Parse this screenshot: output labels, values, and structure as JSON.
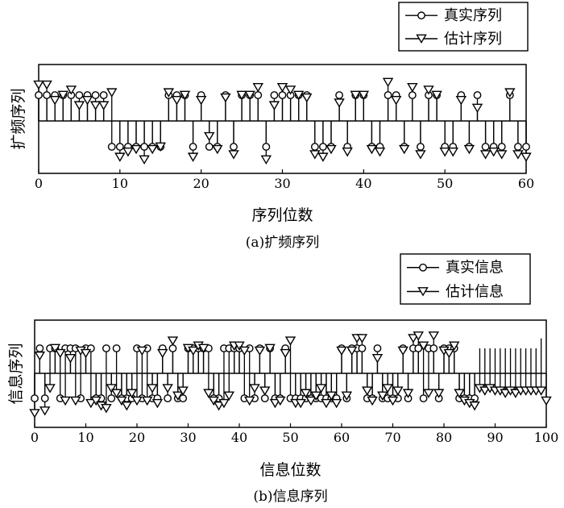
{
  "chart_data": [
    {
      "type": "stem",
      "caption": "(a)扩频序列",
      "xlabel": "序列位数",
      "ylabel": "扩频序列",
      "xlim": [
        0,
        60
      ],
      "ylim": [
        -1.5,
        1.5
      ],
      "xticks": [
        "0",
        "10",
        "20",
        "30",
        "40",
        "50",
        "60"
      ],
      "legend_position": "top-right",
      "series": [
        {
          "name": "真实序列",
          "marker": "circle",
          "x": [
            0,
            1,
            2,
            3,
            4,
            5,
            6,
            7,
            8,
            9,
            10,
            11,
            12,
            13,
            14,
            15,
            16,
            17,
            18,
            19,
            20,
            21,
            22,
            23,
            24,
            25,
            26,
            27,
            28,
            29,
            30,
            31,
            32,
            33,
            34,
            35,
            36,
            37,
            38,
            39,
            40,
            41,
            42,
            43,
            44,
            45,
            46,
            47,
            48,
            49,
            50,
            51,
            52,
            53,
            54,
            55,
            56,
            57,
            58,
            59,
            60
          ],
          "values": [
            1,
            1,
            1,
            1,
            1,
            1,
            1,
            1,
            1,
            -1,
            -1,
            -1,
            -1,
            -1,
            -1,
            -1,
            1,
            1,
            1,
            -1,
            1,
            -1,
            -1,
            1,
            -1,
            1,
            1,
            1,
            -1,
            1,
            1,
            1,
            1,
            1,
            -1,
            -1,
            -1,
            1,
            -1,
            1,
            1,
            -1,
            -1,
            1,
            1,
            -1,
            1,
            -1,
            1,
            1,
            -1,
            -1,
            1,
            -1,
            1,
            -1,
            -1,
            -1,
            1,
            -1,
            -1
          ]
        },
        {
          "name": "估计序列",
          "marker": "triangle-down",
          "x": [
            0,
            1,
            2,
            3,
            4,
            5,
            6,
            7,
            8,
            9,
            10,
            11,
            12,
            13,
            14,
            15,
            16,
            17,
            18,
            19,
            20,
            21,
            22,
            23,
            24,
            25,
            26,
            27,
            28,
            29,
            30,
            31,
            32,
            33,
            34,
            35,
            36,
            37,
            38,
            39,
            40,
            41,
            42,
            43,
            44,
            45,
            46,
            47,
            48,
            49,
            50,
            51,
            52,
            53,
            54,
            55,
            56,
            57,
            58,
            59,
            60
          ],
          "values": [
            1.4,
            1.4,
            0.8,
            1,
            1.2,
            0.6,
            0.8,
            0.6,
            0.6,
            1.1,
            -1.4,
            -1.2,
            -1.1,
            -1.5,
            -1.1,
            -1,
            1.1,
            0.8,
            1,
            -1.4,
            0.8,
            -0.6,
            -1.1,
            0.9,
            -1.3,
            1,
            1,
            1.3,
            -1.5,
            0.6,
            1.3,
            1.2,
            1,
            0.9,
            -1.3,
            -1.4,
            -1.1,
            0.7,
            -1.2,
            1,
            1,
            -1.1,
            -1.2,
            1.5,
            0.8,
            -1.1,
            1.3,
            -1.3,
            1.2,
            1,
            -1.2,
            -1.2,
            0.8,
            -1.1,
            0.5,
            -1.3,
            -1.2,
            -1.3,
            1.1,
            -1.3,
            -1.4
          ]
        }
      ]
    },
    {
      "type": "stem",
      "caption": "(b)信息序列",
      "xlabel": "信息位数",
      "ylabel": "信息序列",
      "xlim": [
        0,
        100
      ],
      "ylim": [
        -1.5,
        1.5
      ],
      "xticks": [
        "0",
        "10",
        "20",
        "30",
        "40",
        "50",
        "60",
        "70",
        "80",
        "90",
        "100"
      ],
      "legend_position": "top-right",
      "series": [
        {
          "name": "真实信息",
          "marker": "circle",
          "x": [
            0,
            1,
            2,
            3,
            4,
            5,
            6,
            7,
            8,
            9,
            10,
            11,
            12,
            13,
            14,
            15,
            16,
            17,
            18,
            19,
            20,
            21,
            22,
            23,
            24,
            25,
            26,
            27,
            28,
            29,
            30,
            31,
            32,
            33,
            34,
            35,
            36,
            37,
            38,
            39,
            40,
            41,
            42,
            43,
            44,
            45,
            46,
            47,
            48,
            49,
            50,
            51,
            52,
            53,
            54,
            55,
            56,
            57,
            58,
            59,
            60,
            61,
            62,
            63,
            64,
            65,
            66,
            67,
            68,
            69,
            70,
            71,
            72,
            73,
            74,
            75,
            76,
            77,
            78,
            79,
            80,
            81,
            82,
            83,
            84,
            85,
            86
          ],
          "values": [
            -1,
            1,
            -1,
            1,
            1,
            -1,
            1,
            1,
            1,
            -1,
            1,
            1,
            -1,
            -1,
            1,
            -1,
            1,
            -1,
            -1,
            -1,
            1,
            -1,
            1,
            -1,
            -1,
            1,
            -1,
            1,
            -1,
            -1,
            1,
            1,
            1,
            1,
            1,
            -1,
            -1,
            1,
            1,
            1,
            1,
            -1,
            1,
            -1,
            1,
            -1,
            1,
            -1,
            -1,
            1,
            -1,
            -1,
            -1,
            -1,
            -1,
            -1,
            -1,
            -1,
            -1,
            -1,
            1,
            -1,
            1,
            1,
            1,
            -1,
            -1,
            1,
            -1,
            -1,
            -1,
            -1,
            1,
            -1,
            1,
            1,
            -1,
            1,
            1,
            -1,
            1,
            1,
            1,
            -1,
            -1,
            -1,
            -1
          ],
          "extra_stem_x": [
            87,
            88,
            89,
            90,
            91,
            92,
            93,
            94,
            95,
            96,
            97,
            98,
            99
          ],
          "extra_stem_values": [
            1,
            1,
            1,
            1,
            1,
            1,
            1,
            1,
            1,
            1,
            1,
            1,
            1.4
          ]
        },
        {
          "name": "估计信息",
          "marker": "triangle-down",
          "x": [
            0,
            1,
            2,
            3,
            4,
            5,
            6,
            7,
            8,
            9,
            10,
            11,
            12,
            13,
            14,
            15,
            16,
            17,
            18,
            19,
            20,
            21,
            22,
            23,
            24,
            25,
            26,
            27,
            28,
            29,
            30,
            31,
            32,
            33,
            34,
            35,
            36,
            37,
            38,
            39,
            40,
            41,
            42,
            43,
            44,
            45,
            46,
            47,
            48,
            49,
            50,
            51,
            52,
            53,
            54,
            55,
            56,
            57,
            58,
            59,
            60,
            61,
            62,
            63,
            64,
            65,
            66,
            67,
            68,
            69,
            70,
            71,
            72,
            73,
            74,
            75,
            76,
            77,
            78,
            79,
            80,
            81,
            82,
            83,
            84,
            85,
            86,
            87,
            88,
            89,
            90,
            91,
            92,
            93,
            94,
            95,
            96,
            97,
            98,
            99,
            100
          ],
          "values": [
            -1.6,
            0.7,
            -1.5,
            -0.6,
            1,
            0.8,
            -1.1,
            0.6,
            -1.1,
            0.9,
            0.8,
            -1.2,
            -1.1,
            -1.3,
            -1.4,
            -0.6,
            -0.8,
            -1.1,
            -1.3,
            -0.8,
            -1.1,
            0.9,
            -1.1,
            -0.6,
            -1.2,
            0.8,
            -0.6,
            1.3,
            -0.9,
            -0.7,
            1,
            0.9,
            1.1,
            1,
            -0.8,
            -1.1,
            -1.3,
            -1.2,
            -0.9,
            1.1,
            1.1,
            0.9,
            -1.1,
            -0.6,
            0.9,
            -0.7,
            1,
            -1.2,
            -1.1,
            0.8,
            1.3,
            -1.2,
            -1.2,
            -0.8,
            -1.1,
            -0.9,
            -0.6,
            -1.2,
            -0.9,
            -1.2,
            0.9,
            -0.9,
            0.9,
            1.4,
            1.4,
            -0.7,
            -1.1,
            0.6,
            -0.9,
            -0.6,
            -1.1,
            -0.7,
            0.9,
            -0.8,
            1.4,
            1.5,
            1.1,
            -0.8,
            1.5,
            -0.8,
            0.9,
            0.8,
            1.1,
            -0.8,
            -1.1,
            -1.2,
            -1.3,
            -0.6,
            -0.7,
            -0.6,
            -0.7,
            -0.7,
            -0.8,
            -0.7,
            -0.8,
            -0.7,
            -0.7,
            -0.7,
            -0.7,
            -0.7,
            -1.1
          ]
        }
      ]
    }
  ]
}
